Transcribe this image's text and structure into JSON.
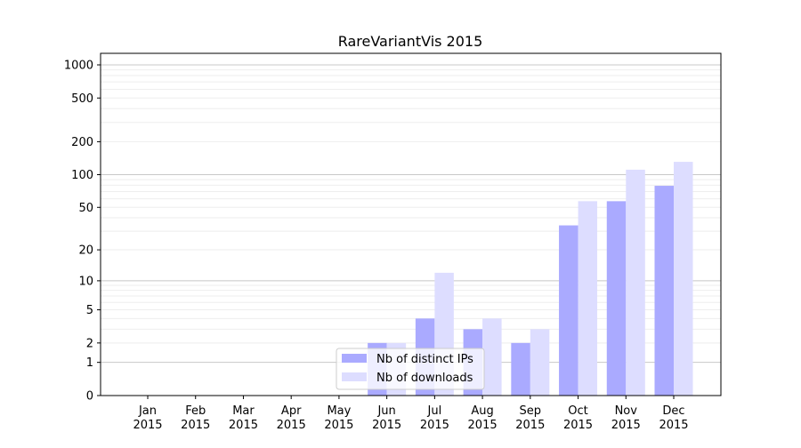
{
  "chart_data": {
    "type": "bar",
    "title": "RareVariantVis 2015",
    "xlabel": "",
    "ylabel": "",
    "yscale": "log(1+y)",
    "ylim": [
      0,
      1273
    ],
    "grid": true,
    "legend_placement": "lower-center",
    "categories": [
      "Jan\n2015",
      "Feb\n2015",
      "Mar\n2015",
      "Apr\n2015",
      "May\n2015",
      "Jun\n2015",
      "Jul\n2015",
      "Aug\n2015",
      "Sep\n2015",
      "Oct\n2015",
      "Nov\n2015",
      "Dec\n2015"
    ],
    "yticks": [
      0,
      1,
      2,
      5,
      10,
      20,
      50,
      100,
      200,
      500,
      1000
    ],
    "series": [
      {
        "name": "Nb of distinct IPs",
        "color": "#aaaaff",
        "values": [
          0,
          0,
          0,
          0,
          0,
          2,
          4,
          3,
          2,
          34,
          57,
          79
        ]
      },
      {
        "name": "Nb of downloads",
        "color": "#ddddff",
        "values": [
          0,
          0,
          0,
          0,
          0,
          2,
          12,
          4,
          3,
          57,
          111,
          131
        ]
      }
    ]
  }
}
